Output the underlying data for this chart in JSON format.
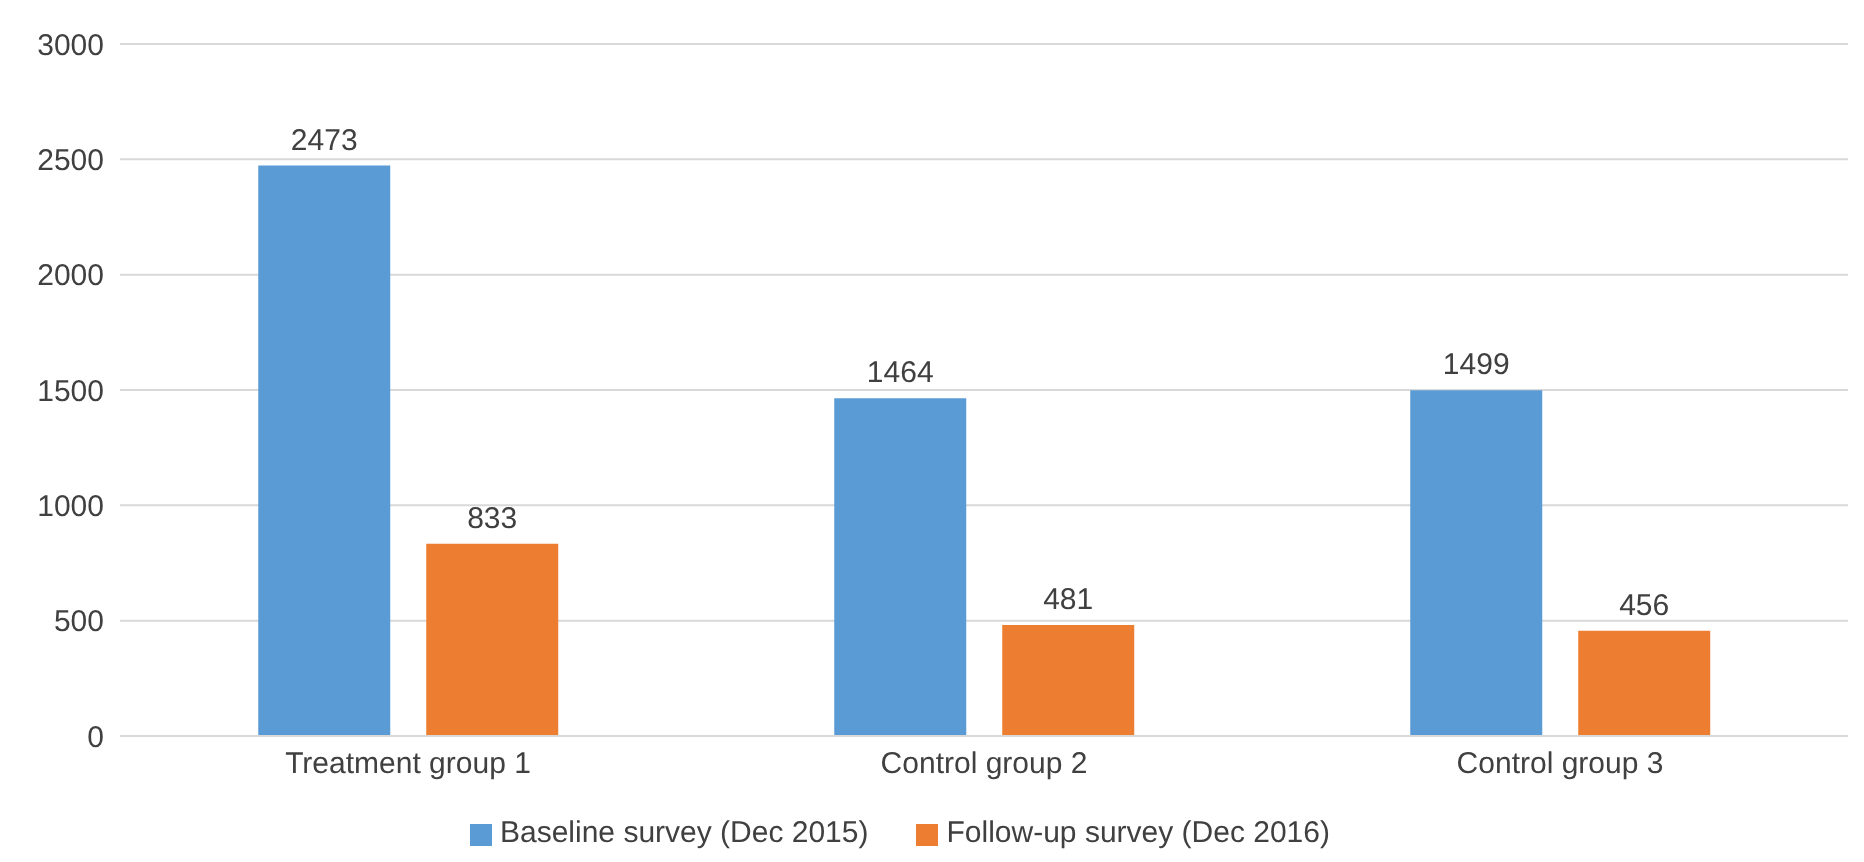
{
  "chart_data": {
    "type": "bar",
    "categories": [
      "Treatment group 1",
      "Control group 2",
      "Control group 3"
    ],
    "series": [
      {
        "name": "Baseline survey (Dec 2015)",
        "color": "#5b9bd5",
        "values": [
          2473,
          1464,
          1499
        ]
      },
      {
        "name": "Follow-up survey (Dec 2016)",
        "color": "#ed7d31",
        "values": [
          833,
          481,
          456
        ]
      }
    ],
    "ylim": [
      0,
      3000
    ],
    "yticks": [
      0,
      500,
      1000,
      1500,
      2000,
      2500,
      3000
    ],
    "grid": "y",
    "legend": "bottom",
    "data_labels": true
  }
}
